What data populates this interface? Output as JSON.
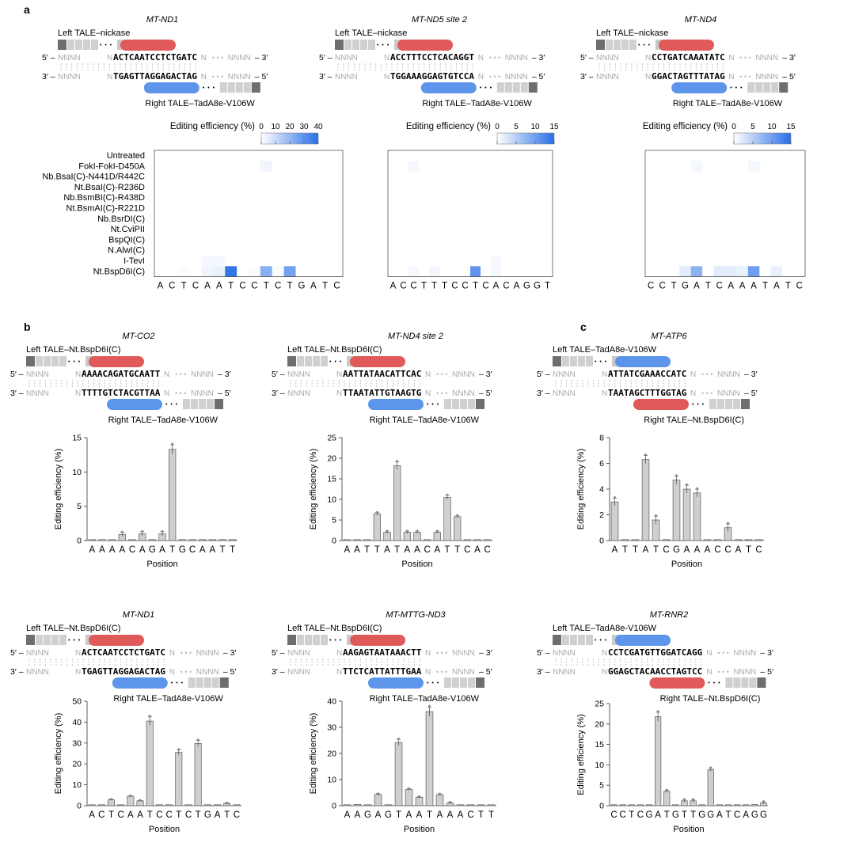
{
  "panels": {
    "a": "a",
    "b": "b",
    "c": "c"
  },
  "heatmap_row_labels": [
    "Untreated",
    "FokI-FokI-D450A",
    "Nb.BsaI(C)-N441D/R442C",
    "Nt.BsaI(C)-R236D",
    "Nb.BsmBI(C)-R438D",
    "Nt.BsmAI(C)-R221D",
    "Nb.BsrDI(C)",
    "Nt.CviPII",
    "BspQI(C)",
    "N.AlwI(C)",
    "I-TevI",
    "Nt.BspD6I(C)"
  ],
  "colorbar_label": "Editing efficiency (%)",
  "xlabel": "Position",
  "ylabel": "Editing efficiency (%)",
  "diagram": {
    "ellipsis": "• • •",
    "dots": "• • •",
    "five_prime_left": "5′ –",
    "three_prime_left": "3′ –",
    "five_prime_right": "– 5′",
    "three_prime_right": "– 3′",
    "nnnn": "NNNN",
    "n": "N"
  },
  "designs": [
    {
      "title": "MT-ND1",
      "left_label": "Left TALE–nickase",
      "right_label": "Right TALE–TadA8e-V106W",
      "top": "ACTCAATCCTCTGATC",
      "bottom": "TGAGTTAGGAGACTAG",
      "left_color": "#e05a5a",
      "right_color": "#5c95ea"
    },
    {
      "title": "MT-ND5 site 2",
      "left_label": "Left TALE–nickase",
      "right_label": "Right TALE–TadA8e-V106W",
      "top": "ACCTTTCCTCACAGGT",
      "bottom": "TGGAAAGGAGTGTCCA",
      "left_color": "#e05a5a",
      "right_color": "#5c95ea"
    },
    {
      "title": "MT-ND4",
      "left_label": "Left TALE–nickase",
      "right_label": "Right TALE–TadA8e-V106W",
      "top": "CCTGATCAAATATC",
      "bottom": "GGACTAGTTTATAG",
      "left_color": "#e05a5a",
      "right_color": "#5c95ea"
    },
    {
      "title": "MT-CO2",
      "left_label": "Left TALE–Nt.BspD6I(C)",
      "right_label": "Right TALE–TadA8e-V106W",
      "top": "AAAACAGATGCAATT",
      "bottom": "TTTTGTCTACGTTAA",
      "left_color": "#e05a5a",
      "right_color": "#5c95ea"
    },
    {
      "title": "MT-ND4 site 2",
      "left_label": "Left TALE–Nt.BspD6I(C)",
      "right_label": "Right TALE–TadA8e-V106W",
      "top": "AATTATAACATTCAC",
      "bottom": "TTAATATTGTAAGTG",
      "left_color": "#e05a5a",
      "right_color": "#5c95ea"
    },
    {
      "title": "MT-ATP6",
      "left_label": "Left TALE–TadA8e-V106W",
      "right_label": "Right TALE–Nt.BspD6I(C)",
      "top": "ATTATCGAAACCATC",
      "bottom": "TAATAGCTTTGGTAG",
      "left_color": "#5c95ea",
      "right_color": "#e05a5a"
    },
    {
      "title": "MT-ND1",
      "left_label": "Left TALE–Nt.BspD6I(C)",
      "right_label": "Right TALE–TadA8e-V106W",
      "top": "ACTCAATCCTCTGATC",
      "bottom": "TGAGTTAGGAGACTAG",
      "left_color": "#e05a5a",
      "right_color": "#5c95ea"
    },
    {
      "title": "MT-MTTG-ND3",
      "left_label": "Left TALE–Nt.BspD6I(C)",
      "right_label": "Right TALE–TadA8e-V106W",
      "top": "AAGAGTAATAAACTT",
      "bottom": "TTCTCATTATTTGAA",
      "left_color": "#e05a5a",
      "right_color": "#5c95ea"
    },
    {
      "title": "MT-RNR2",
      "left_label": "Left TALE–TadA8e-V106W",
      "right_label": "Right TALE–Nt.BspD6I(C)",
      "top": "CCTCGATGTTGGATCAGG",
      "bottom": "GGAGCTACAACCTAGTCC",
      "left_color": "#5c95ea",
      "right_color": "#e05a5a"
    }
  ],
  "chart_data": [
    {
      "type": "heatmap",
      "title": "MT-ND1",
      "colorbar_ticks": [
        0,
        10,
        20,
        30,
        40
      ],
      "vmax": 40,
      "rows": [
        "Untreated",
        "FokI-FokI-D450A",
        "Nb.BsaI(C)-N441D/R442C",
        "Nt.BsaI(C)-R236D",
        "Nb.BsmBI(C)-R438D",
        "Nt.BsmAI(C)-R221D",
        "Nb.BsrDI(C)",
        "Nt.CviPII",
        "BspQI(C)",
        "N.AlwI(C)",
        "I-TevI",
        "Nt.BspD6I(C)"
      ],
      "columns": [
        "A",
        "C",
        "T",
        "C",
        "A",
        "A",
        "T",
        "C",
        "C",
        "T",
        "C",
        "T",
        "G",
        "A",
        "T",
        "C"
      ],
      "values": [
        [
          0,
          0,
          0,
          0,
          0,
          0,
          0,
          0,
          0,
          0,
          0,
          0,
          0,
          0,
          0,
          0
        ],
        [
          0,
          0,
          0,
          0,
          0,
          0,
          0,
          0,
          0,
          3,
          0,
          0,
          0,
          0,
          0,
          0
        ],
        [
          0,
          0,
          0,
          0,
          0,
          0,
          0,
          0,
          0,
          0,
          0,
          0,
          0,
          0,
          0,
          0
        ],
        [
          0,
          0,
          0,
          0,
          0,
          0,
          0,
          0,
          0,
          0,
          0,
          0,
          0,
          0,
          0,
          0
        ],
        [
          0,
          0,
          0,
          0,
          0,
          0,
          0,
          0,
          0,
          0,
          0,
          0,
          0,
          0,
          0,
          0
        ],
        [
          0,
          0,
          0,
          0,
          0,
          0,
          0,
          0,
          0,
          0,
          0,
          0,
          0,
          0,
          0,
          0
        ],
        [
          0,
          0,
          0,
          0,
          0,
          0,
          0,
          0,
          0,
          0,
          0,
          0,
          0,
          0,
          0,
          0
        ],
        [
          0,
          0,
          0,
          0,
          0,
          0,
          0,
          0,
          0,
          0,
          0,
          0,
          0,
          0,
          0,
          0
        ],
        [
          0,
          0,
          0,
          0,
          0,
          0,
          0,
          0,
          0,
          0,
          0,
          0,
          0,
          0,
          0,
          0
        ],
        [
          0,
          0,
          0,
          0,
          0,
          0,
          0,
          0,
          0,
          0,
          0,
          0,
          0,
          0,
          0,
          0
        ],
        [
          0,
          0,
          0,
          0,
          2,
          2,
          0,
          0,
          0,
          0,
          0,
          0,
          0,
          0,
          0,
          0
        ],
        [
          0,
          0,
          1,
          0,
          3,
          4,
          38,
          0,
          1,
          22,
          1,
          26,
          0,
          0,
          0,
          0
        ]
      ]
    },
    {
      "type": "heatmap",
      "title": "MT-ND5 site 2",
      "colorbar_ticks": [
        0,
        5,
        10,
        15
      ],
      "vmax": 15,
      "rows": [
        "Untreated",
        "FokI-FokI-D450A",
        "Nb.BsaI(C)-N441D/R442C",
        "Nt.BsaI(C)-R236D",
        "Nb.BsmBI(C)-R438D",
        "Nt.BsmAI(C)-R221D",
        "Nb.BsrDI(C)",
        "Nt.CviPII",
        "BspQI(C)",
        "N.AlwI(C)",
        "I-TevI",
        "Nt.BspD6I(C)"
      ],
      "columns": [
        "A",
        "C",
        "C",
        "T",
        "T",
        "T",
        "C",
        "C",
        "T",
        "C",
        "A",
        "C",
        "A",
        "G",
        "G",
        "T"
      ],
      "values": [
        [
          0,
          0,
          0,
          0,
          0,
          0,
          0,
          0,
          0,
          0,
          0,
          0,
          0,
          0,
          0,
          0
        ],
        [
          0,
          0,
          0.8,
          0,
          0,
          0,
          0,
          0,
          0,
          0,
          0,
          0,
          0,
          0,
          0,
          0
        ],
        [
          0,
          0,
          0,
          0,
          0,
          0,
          0,
          0,
          0,
          0,
          0,
          0,
          0,
          0,
          0,
          0
        ],
        [
          0,
          0,
          0,
          0,
          0,
          0,
          0,
          0,
          0,
          0,
          0,
          0,
          0,
          0,
          0,
          0
        ],
        [
          0,
          0,
          0,
          0,
          0,
          0,
          0,
          0,
          0,
          0,
          0,
          0,
          0,
          0,
          0,
          0
        ],
        [
          0,
          0,
          0,
          0,
          0,
          0,
          0,
          0,
          0,
          0,
          0,
          0,
          0,
          0,
          0,
          0
        ],
        [
          0,
          0,
          0,
          0,
          0,
          0,
          0,
          0,
          0,
          0,
          0,
          0,
          0,
          0,
          0,
          0
        ],
        [
          0,
          0,
          0,
          0,
          0,
          0,
          0,
          0,
          0,
          0,
          0,
          0,
          0,
          0,
          0,
          0
        ],
        [
          0,
          0,
          0,
          0,
          0,
          0,
          0,
          0,
          0,
          0,
          0,
          0,
          0,
          0,
          0,
          0
        ],
        [
          0,
          0,
          0,
          0,
          0,
          0,
          0,
          0,
          0,
          0,
          0,
          0,
          0,
          0,
          0,
          0
        ],
        [
          0,
          0,
          0,
          0,
          0,
          0,
          0,
          0,
          0,
          0,
          0.6,
          0,
          0,
          0,
          0,
          0
        ],
        [
          0,
          0,
          0.7,
          0,
          0.8,
          0,
          0,
          0,
          11,
          0,
          0.8,
          0,
          0,
          0,
          0,
          0
        ]
      ]
    },
    {
      "type": "heatmap",
      "title": "MT-ND4",
      "colorbar_ticks": [
        0,
        5,
        10,
        15
      ],
      "vmax": 15,
      "rows": [
        "Untreated",
        "FokI-FokI-D450A",
        "Nb.BsaI(C)-N441D/R442C",
        "Nt.BsaI(C)-R236D",
        "Nb.BsmBI(C)-R438D",
        "Nt.BsmAI(C)-R221D",
        "Nb.BsrDI(C)",
        "Nt.CviPII",
        "BspQI(C)",
        "N.AlwI(C)",
        "I-TevI",
        "Nt.BspD6I(C)"
      ],
      "columns": [
        "C",
        "C",
        "T",
        "G",
        "A",
        "T",
        "C",
        "A",
        "A",
        "A",
        "T",
        "A",
        "T",
        "C"
      ],
      "values": [
        [
          0,
          0,
          0,
          0,
          0,
          0,
          0,
          0,
          0,
          0,
          0,
          0,
          0,
          0
        ],
        [
          0,
          0,
          0,
          0,
          0.8,
          0,
          0,
          0,
          0,
          0.8,
          0,
          0,
          0,
          0
        ],
        [
          0,
          0,
          0,
          0,
          0,
          0,
          0,
          0,
          0,
          0,
          0,
          0,
          0,
          0
        ],
        [
          0,
          0,
          0,
          0,
          0,
          0,
          0,
          0,
          0,
          0,
          0,
          0,
          0,
          0
        ],
        [
          0,
          0,
          0,
          0,
          0,
          0,
          0,
          0,
          0,
          0,
          0,
          0,
          0,
          0
        ],
        [
          0,
          0,
          0,
          0,
          0,
          0,
          0,
          0,
          0,
          0,
          0,
          0,
          0,
          0
        ],
        [
          0,
          0,
          0,
          0,
          0,
          0,
          0,
          0,
          0,
          0,
          0,
          0,
          0,
          0
        ],
        [
          0,
          0,
          0,
          0,
          0,
          0,
          0,
          0,
          0,
          0,
          0,
          0,
          0,
          0
        ],
        [
          0,
          0,
          0,
          0,
          0,
          0,
          0,
          0,
          0,
          0,
          0,
          0,
          0,
          0
        ],
        [
          0,
          0,
          0,
          0,
          0,
          0,
          0,
          0,
          0,
          0,
          0,
          0,
          0,
          0
        ],
        [
          0,
          0,
          0,
          0,
          0,
          0,
          0,
          0,
          0,
          0,
          0,
          0,
          0,
          0
        ],
        [
          0,
          0,
          0,
          2,
          8,
          0,
          2,
          2,
          1.5,
          10,
          0,
          1.5,
          0,
          0
        ]
      ]
    },
    {
      "type": "bar",
      "title": "MT-CO2",
      "categories": [
        "A",
        "A",
        "A",
        "A",
        "C",
        "A",
        "G",
        "A",
        "T",
        "G",
        "C",
        "A",
        "A",
        "T",
        "T"
      ],
      "values": [
        0,
        0,
        0,
        0.9,
        0,
        1.0,
        0,
        1.0,
        13.3,
        0,
        0,
        0,
        0,
        0,
        0
      ],
      "ylim": [
        0,
        15
      ],
      "yticks": [
        0,
        5,
        10,
        15
      ],
      "xlabel": "Position",
      "ylabel": "Editing efficiency (%)"
    },
    {
      "type": "bar",
      "title": "MT-ND4 site 2",
      "categories": [
        "A",
        "A",
        "T",
        "T",
        "A",
        "T",
        "A",
        "A",
        "C",
        "A",
        "T",
        "T",
        "C",
        "A",
        "C"
      ],
      "values": [
        0,
        0,
        0,
        6.5,
        2,
        18.2,
        2,
        2,
        0,
        2,
        10.5,
        5.8,
        0,
        0,
        0
      ],
      "ylim": [
        0,
        25
      ],
      "yticks": [
        0,
        5,
        10,
        15,
        20,
        25
      ],
      "xlabel": "Position",
      "ylabel": "Editing efficiency (%)"
    },
    {
      "type": "bar",
      "title": "MT-ATP6",
      "categories": [
        "A",
        "T",
        "T",
        "A",
        "T",
        "C",
        "G",
        "A",
        "A",
        "A",
        "C",
        "C",
        "A",
        "T",
        "C"
      ],
      "values": [
        3.0,
        0,
        0,
        6.3,
        1.6,
        0,
        4.7,
        4.0,
        3.7,
        0,
        0,
        1.0,
        0,
        0,
        0
      ],
      "ylim": [
        0,
        8
      ],
      "yticks": [
        0,
        2,
        4,
        6,
        8
      ],
      "xlabel": "Position",
      "ylabel": "Editing efficiency (%)"
    },
    {
      "type": "bar",
      "title": "MT-ND1",
      "categories": [
        "A",
        "C",
        "T",
        "C",
        "A",
        "A",
        "T",
        "C",
        "C",
        "T",
        "C",
        "T",
        "G",
        "A",
        "T",
        "C"
      ],
      "values": [
        0,
        0,
        2.8,
        0,
        4.5,
        2.3,
        40.5,
        0,
        0,
        25.5,
        0,
        29.8,
        0,
        0,
        1,
        0
      ],
      "ylim": [
        0,
        50
      ],
      "yticks": [
        0,
        10,
        20,
        30,
        40,
        50
      ],
      "xlabel": "Position",
      "ylabel": "Editing efficiency (%)"
    },
    {
      "type": "bar",
      "title": "MT-MTTG-ND3",
      "categories": [
        "A",
        "A",
        "G",
        "A",
        "G",
        "T",
        "A",
        "A",
        "T",
        "A",
        "A",
        "A",
        "C",
        "T",
        "T"
      ],
      "values": [
        0,
        0.5,
        0,
        4.3,
        0,
        24.2,
        6.2,
        3.2,
        36,
        4.2,
        1,
        0,
        0,
        0,
        0
      ],
      "ylim": [
        0,
        40
      ],
      "yticks": [
        0,
        10,
        20,
        30,
        40
      ],
      "xlabel": "Position",
      "ylabel": "Editing efficiency (%)"
    },
    {
      "type": "bar",
      "title": "MT-RNR2",
      "categories": [
        "C",
        "C",
        "T",
        "C",
        "G",
        "A",
        "T",
        "G",
        "T",
        "T",
        "G",
        "G",
        "A",
        "T",
        "C",
        "A",
        "G",
        "G"
      ],
      "values": [
        0,
        0,
        0,
        0,
        0,
        21.8,
        3.5,
        0,
        1.2,
        1.2,
        0,
        8.8,
        0,
        0,
        0,
        0,
        0.3,
        0.7
      ],
      "ylim": [
        0,
        25
      ],
      "yticks": [
        0,
        5,
        10,
        15,
        20,
        25
      ],
      "xlabel": "Position",
      "ylabel": "Editing efficiency (%)"
    }
  ]
}
